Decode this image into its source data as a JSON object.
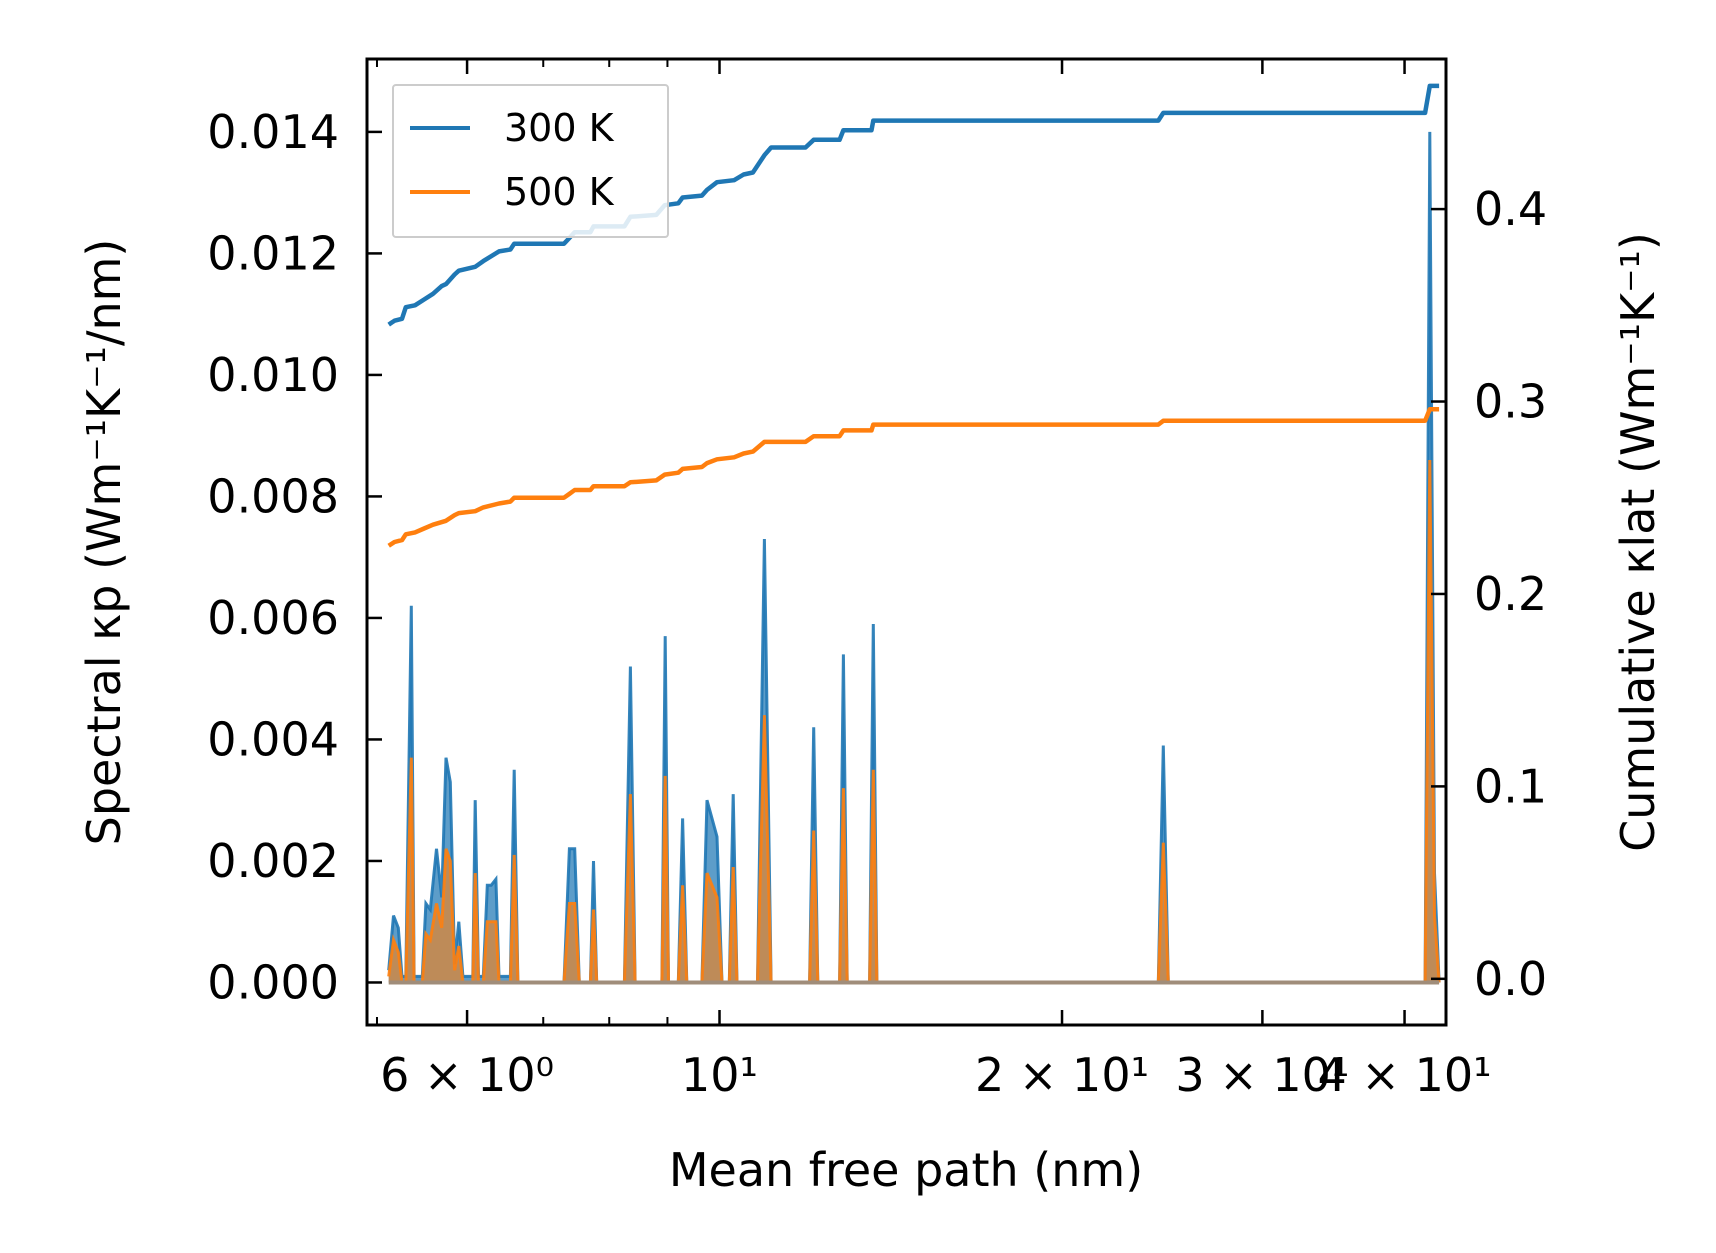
{
  "chart_data": {
    "type": "line",
    "xscale": "log",
    "xlabel": "Mean free path (nm)",
    "ylabel_left": "Spectral κp (Wm⁻¹K⁻¹/nm)",
    "ylabel_right": "Cumulative κlat (Wm⁻¹K⁻¹)",
    "xlim": [
      4.9,
      43.5
    ],
    "ylim_left": [
      -0.0007,
      0.0152
    ],
    "ylim_right": [
      -0.024,
      0.478
    ],
    "x_ticks": [
      {
        "value": 6,
        "label": "6 × 10⁰"
      },
      {
        "value": 10,
        "label": "10¹"
      },
      {
        "value": 20,
        "label": "2 × 10¹"
      },
      {
        "value": 30,
        "label": "3 × 10¹"
      },
      {
        "value": 40,
        "label": "4 × 10¹"
      }
    ],
    "y_ticks_left": [
      "0.000",
      "0.002",
      "0.004",
      "0.006",
      "0.008",
      "0.010",
      "0.012",
      "0.014"
    ],
    "y_ticks_right": [
      "0.0",
      "0.1",
      "0.2",
      "0.3",
      "0.4"
    ],
    "legend": {
      "location": "upper-left",
      "entries": [
        {
          "label": "300 K",
          "color": "#1f77b4"
        },
        {
          "label": "500 K",
          "color": "#ff7f0e"
        }
      ]
    },
    "spectral_baseline_x": [
      5.12,
      42.9
    ],
    "spectral_series": [
      {
        "name": "300 K",
        "color": "#1f77b4",
        "points": [
          [
            5.12,
            0.0002
          ],
          [
            5.17,
            0.0011
          ],
          [
            5.22,
            0.0009
          ],
          [
            5.26,
            0.0001
          ],
          [
            5.3,
            0.0001
          ],
          [
            5.36,
            0.0062
          ],
          [
            5.39,
            0.0001
          ],
          [
            5.48,
            0.0001
          ],
          [
            5.52,
            0.0013
          ],
          [
            5.57,
            0.0012
          ],
          [
            5.64,
            0.0022
          ],
          [
            5.7,
            0.0014
          ],
          [
            5.75,
            0.0037
          ],
          [
            5.8,
            0.0033
          ],
          [
            5.85,
            0.0003
          ],
          [
            5.9,
            0.001
          ],
          [
            5.95,
            0.0001
          ],
          [
            6.07,
            0.0001
          ],
          [
            6.1,
            0.003
          ],
          [
            6.14,
            0.0001
          ],
          [
            6.2,
            0.0001
          ],
          [
            6.25,
            0.0016
          ],
          [
            6.3,
            0.0016
          ],
          [
            6.36,
            0.0017
          ],
          [
            6.4,
            0.0001
          ],
          [
            6.55,
            0.0001
          ],
          [
            6.6,
            0.0035
          ],
          [
            6.65,
            0.0
          ],
          [
            7.3,
            0.0
          ],
          [
            7.38,
            0.0022
          ],
          [
            7.46,
            0.0022
          ],
          [
            7.53,
            0.0
          ],
          [
            7.7,
            0.0
          ],
          [
            7.75,
            0.002
          ],
          [
            7.8,
            0.0
          ],
          [
            8.25,
            0.0
          ],
          [
            8.35,
            0.0052
          ],
          [
            8.43,
            0.0
          ],
          [
            8.9,
            0.0
          ],
          [
            8.96,
            0.0057
          ],
          [
            9.02,
            0.0
          ],
          [
            9.2,
            0.0
          ],
          [
            9.28,
            0.0027
          ],
          [
            9.36,
            0.0
          ],
          [
            9.65,
            0.0
          ],
          [
            9.75,
            0.003
          ],
          [
            9.95,
            0.0024
          ],
          [
            10.05,
            0.0
          ],
          [
            10.2,
            0.0
          ],
          [
            10.28,
            0.0031
          ],
          [
            10.36,
            0.0
          ],
          [
            10.8,
            0.0
          ],
          [
            10.95,
            0.0073
          ],
          [
            11.1,
            0.0
          ],
          [
            12.0,
            0.0
          ],
          [
            12.1,
            0.0042
          ],
          [
            12.2,
            0.0
          ],
          [
            12.75,
            0.0
          ],
          [
            12.85,
            0.0054
          ],
          [
            12.95,
            0.0
          ],
          [
            13.55,
            0.0
          ],
          [
            13.65,
            0.0059
          ],
          [
            13.75,
            0.0
          ],
          [
            24.3,
            0.0
          ],
          [
            24.55,
            0.0039
          ],
          [
            24.8,
            0.0
          ],
          [
            41.7,
            0.0
          ],
          [
            42.1,
            0.014
          ],
          [
            42.5,
            0.0018
          ],
          [
            42.9,
            0.0
          ]
        ]
      },
      {
        "name": "500 K",
        "color": "#ff7f0e",
        "points": [
          [
            5.12,
            0.0001
          ],
          [
            5.17,
            0.0007
          ],
          [
            5.22,
            0.0005
          ],
          [
            5.26,
            0.0
          ],
          [
            5.3,
            0.0
          ],
          [
            5.36,
            0.0037
          ],
          [
            5.39,
            0.0
          ],
          [
            5.48,
            0.0
          ],
          [
            5.52,
            0.0008
          ],
          [
            5.57,
            0.0007
          ],
          [
            5.64,
            0.0013
          ],
          [
            5.7,
            0.0009
          ],
          [
            5.75,
            0.0022
          ],
          [
            5.8,
            0.002
          ],
          [
            5.85,
            0.0002
          ],
          [
            5.9,
            0.0006
          ],
          [
            5.95,
            0.0
          ],
          [
            6.07,
            0.0
          ],
          [
            6.1,
            0.0018
          ],
          [
            6.14,
            0.0
          ],
          [
            6.2,
            0.0
          ],
          [
            6.25,
            0.001
          ],
          [
            6.3,
            0.001
          ],
          [
            6.36,
            0.001
          ],
          [
            6.4,
            0.0
          ],
          [
            6.55,
            0.0
          ],
          [
            6.6,
            0.0021
          ],
          [
            6.65,
            0.0
          ],
          [
            7.3,
            0.0
          ],
          [
            7.38,
            0.0013
          ],
          [
            7.46,
            0.0013
          ],
          [
            7.53,
            0.0
          ],
          [
            7.7,
            0.0
          ],
          [
            7.75,
            0.0012
          ],
          [
            7.8,
            0.0
          ],
          [
            8.25,
            0.0
          ],
          [
            8.35,
            0.0031
          ],
          [
            8.43,
            0.0
          ],
          [
            8.9,
            0.0
          ],
          [
            8.96,
            0.0034
          ],
          [
            9.02,
            0.0
          ],
          [
            9.2,
            0.0
          ],
          [
            9.28,
            0.0016
          ],
          [
            9.36,
            0.0
          ],
          [
            9.65,
            0.0
          ],
          [
            9.75,
            0.0018
          ],
          [
            9.95,
            0.0014
          ],
          [
            10.05,
            0.0
          ],
          [
            10.2,
            0.0
          ],
          [
            10.28,
            0.0019
          ],
          [
            10.36,
            0.0
          ],
          [
            10.8,
            0.0
          ],
          [
            10.95,
            0.0044
          ],
          [
            11.1,
            0.0
          ],
          [
            12.0,
            0.0
          ],
          [
            12.1,
            0.0025
          ],
          [
            12.2,
            0.0
          ],
          [
            12.75,
            0.0
          ],
          [
            12.85,
            0.0032
          ],
          [
            12.95,
            0.0
          ],
          [
            13.55,
            0.0
          ],
          [
            13.65,
            0.0035
          ],
          [
            13.75,
            0.0
          ],
          [
            24.3,
            0.0
          ],
          [
            24.55,
            0.0023
          ],
          [
            24.8,
            0.0
          ],
          [
            41.7,
            0.0
          ],
          [
            42.1,
            0.0086
          ],
          [
            42.5,
            0.0011
          ],
          [
            42.9,
            0.0
          ]
        ]
      }
    ],
    "cumulative_series": [
      {
        "name": "300 K",
        "color": "#1f77b4",
        "points": [
          [
            5.12,
            0.34
          ],
          [
            5.15,
            0.341
          ],
          [
            5.18,
            0.342
          ],
          [
            5.26,
            0.343
          ],
          [
            5.3,
            0.349
          ],
          [
            5.4,
            0.35
          ],
          [
            5.5,
            0.353
          ],
          [
            5.6,
            0.356
          ],
          [
            5.7,
            0.36
          ],
          [
            5.75,
            0.361
          ],
          [
            5.85,
            0.366
          ],
          [
            5.9,
            0.368
          ],
          [
            6.1,
            0.37
          ],
          [
            6.2,
            0.373
          ],
          [
            6.4,
            0.378
          ],
          [
            6.55,
            0.379
          ],
          [
            6.6,
            0.382
          ],
          [
            7.3,
            0.382
          ],
          [
            7.38,
            0.385
          ],
          [
            7.46,
            0.388
          ],
          [
            7.7,
            0.388
          ],
          [
            7.75,
            0.391
          ],
          [
            8.25,
            0.391
          ],
          [
            8.35,
            0.396
          ],
          [
            8.8,
            0.397
          ],
          [
            8.95,
            0.402
          ],
          [
            9.2,
            0.403
          ],
          [
            9.28,
            0.406
          ],
          [
            9.65,
            0.407
          ],
          [
            9.75,
            0.41
          ],
          [
            9.95,
            0.414
          ],
          [
            10.3,
            0.415
          ],
          [
            10.5,
            0.418
          ],
          [
            10.7,
            0.419
          ],
          [
            10.95,
            0.428
          ],
          [
            11.1,
            0.432
          ],
          [
            11.9,
            0.432
          ],
          [
            12.1,
            0.436
          ],
          [
            12.75,
            0.436
          ],
          [
            12.85,
            0.441
          ],
          [
            13.6,
            0.441
          ],
          [
            13.65,
            0.446
          ],
          [
            24.3,
            0.446
          ],
          [
            24.55,
            0.45
          ],
          [
            41.7,
            0.45
          ],
          [
            42.1,
            0.464
          ],
          [
            42.9,
            0.464
          ]
        ]
      },
      {
        "name": "500 K",
        "color": "#ff7f0e",
        "points": [
          [
            5.12,
            0.225
          ],
          [
            5.15,
            0.226
          ],
          [
            5.18,
            0.227
          ],
          [
            5.26,
            0.228
          ],
          [
            5.3,
            0.231
          ],
          [
            5.4,
            0.232
          ],
          [
            5.5,
            0.234
          ],
          [
            5.6,
            0.236
          ],
          [
            5.75,
            0.238
          ],
          [
            5.85,
            0.241
          ],
          [
            5.9,
            0.242
          ],
          [
            6.1,
            0.243
          ],
          [
            6.2,
            0.245
          ],
          [
            6.4,
            0.247
          ],
          [
            6.55,
            0.248
          ],
          [
            6.6,
            0.25
          ],
          [
            7.3,
            0.25
          ],
          [
            7.38,
            0.252
          ],
          [
            7.46,
            0.254
          ],
          [
            7.7,
            0.254
          ],
          [
            7.75,
            0.256
          ],
          [
            8.25,
            0.256
          ],
          [
            8.35,
            0.258
          ],
          [
            8.8,
            0.259
          ],
          [
            8.95,
            0.262
          ],
          [
            9.2,
            0.263
          ],
          [
            9.28,
            0.265
          ],
          [
            9.65,
            0.266
          ],
          [
            9.75,
            0.268
          ],
          [
            9.95,
            0.27
          ],
          [
            10.3,
            0.271
          ],
          [
            10.5,
            0.273
          ],
          [
            10.7,
            0.274
          ],
          [
            10.95,
            0.279
          ],
          [
            11.9,
            0.279
          ],
          [
            12.1,
            0.282
          ],
          [
            12.75,
            0.282
          ],
          [
            12.85,
            0.285
          ],
          [
            13.6,
            0.285
          ],
          [
            13.65,
            0.288
          ],
          [
            24.3,
            0.288
          ],
          [
            24.55,
            0.29
          ],
          [
            41.7,
            0.29
          ],
          [
            42.1,
            0.296
          ],
          [
            42.9,
            0.296
          ]
        ]
      }
    ]
  }
}
